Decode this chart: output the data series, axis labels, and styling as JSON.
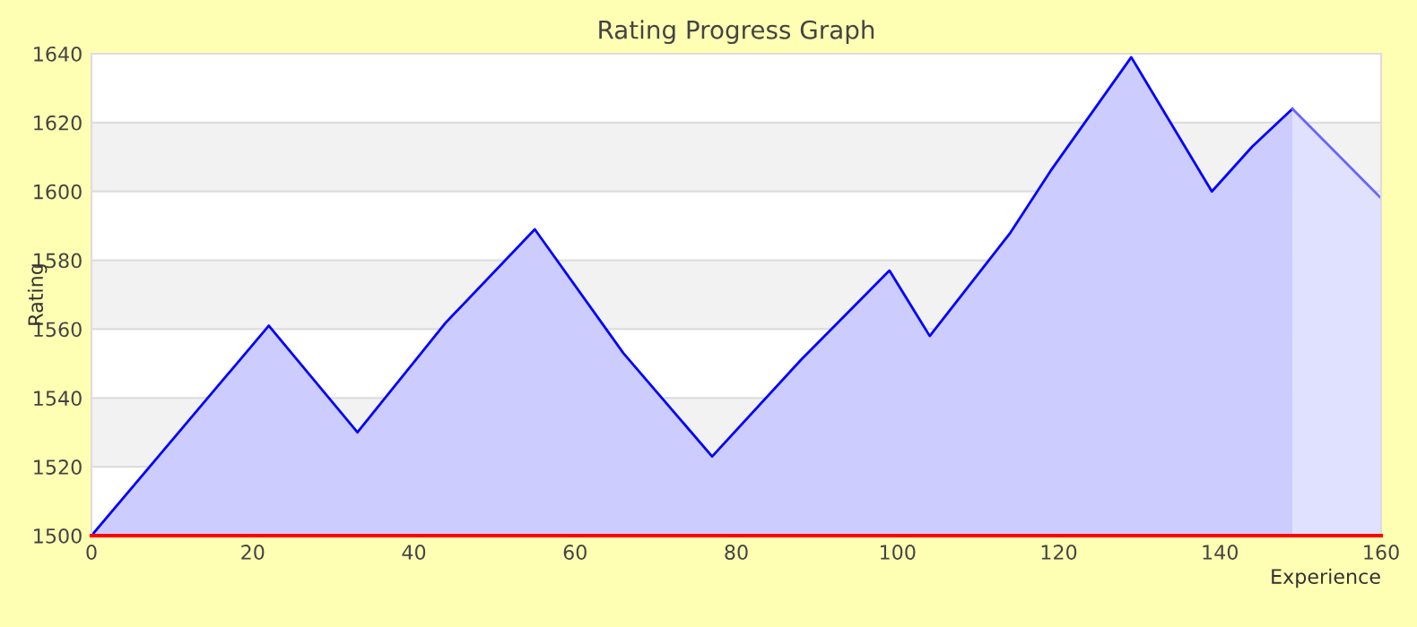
{
  "chart_data": {
    "type": "area",
    "title": "Rating Progress Graph",
    "xlabel": "Experience",
    "ylabel": "Rating",
    "xlim": [
      0,
      160
    ],
    "xticks": [
      0,
      20,
      40,
      60,
      80,
      100,
      120,
      140,
      160
    ],
    "ylim": [
      1500,
      1640
    ],
    "yticks": [
      1500,
      1520,
      1540,
      1560,
      1580,
      1600,
      1620,
      1640
    ],
    "grid": "y",
    "legend": false,
    "series": [
      {
        "color": "#0000ff",
        "x": [
          0,
          22,
          33,
          44,
          55,
          66,
          77,
          88,
          99,
          104,
          114,
          119,
          129,
          139,
          144,
          149
        ],
        "values": [
          1500,
          1561,
          1530,
          1562,
          1589,
          1553,
          1523,
          1551,
          1577,
          1558,
          1588,
          1606,
          1639,
          1600,
          1613,
          1624
        ]
      },
      {
        "color": "#6666ff",
        "x": [
          149,
          160
        ],
        "values": [
          1624,
          1598
        ]
      }
    ]
  }
}
